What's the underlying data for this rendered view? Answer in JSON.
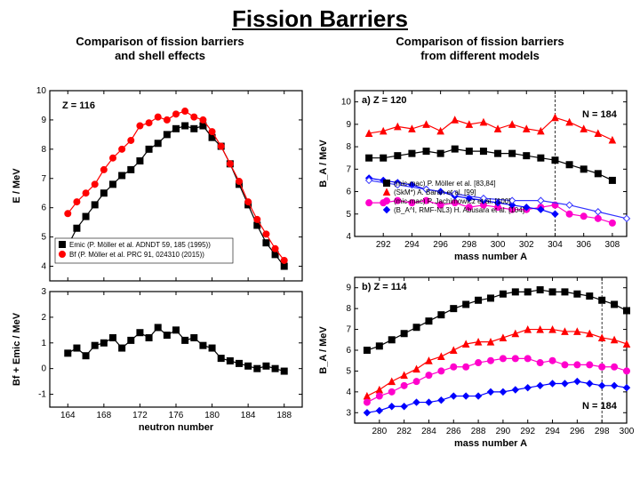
{
  "title": "Fission Barriers",
  "left_sub": "Comparison of fission barriers\nand shell effects",
  "right_sub": "Comparison of fission barriers\nfrom different models",
  "colors": {
    "axis": "#000000",
    "grid": "#cccccc",
    "black": "#000000",
    "red": "#ff0000",
    "magenta": "#ff00cc",
    "blue": "#0000ff",
    "openblue": "#3333ff"
  },
  "left": {
    "annot": "Z = 116",
    "xaxis_label": "neutron number",
    "x": [
      164,
      165,
      166,
      167,
      168,
      169,
      170,
      171,
      172,
      173,
      174,
      175,
      176,
      177,
      178,
      179,
      180,
      181,
      182,
      183,
      184,
      185,
      186,
      187,
      188
    ],
    "xlim": [
      162,
      190
    ],
    "xticks": [
      164,
      168,
      172,
      176,
      180,
      184,
      188
    ],
    "top": {
      "ylabel": "E / MeV",
      "ylim": [
        3.5,
        10
      ],
      "yticks": [
        4,
        5,
        6,
        7,
        8,
        9,
        10
      ],
      "black": [
        4.7,
        5.3,
        5.7,
        6.1,
        6.5,
        6.8,
        7.1,
        7.3,
        7.6,
        8.0,
        8.2,
        8.5,
        8.7,
        8.8,
        8.7,
        8.8,
        8.4,
        8.1,
        7.5,
        6.8,
        6.1,
        5.4,
        4.8,
        4.4,
        4.0
      ],
      "red": [
        5.8,
        6.2,
        6.5,
        6.8,
        7.3,
        7.7,
        8.0,
        8.3,
        8.8,
        8.9,
        9.1,
        9.0,
        9.2,
        9.3,
        9.1,
        9.0,
        8.6,
        8.1,
        7.5,
        6.9,
        6.2,
        5.6,
        5.1,
        4.6,
        4.2
      ],
      "legend": [
        {
          "marker": "sq",
          "color": "black",
          "label": "Emic (P. Möller et al. ADNDT 59, 185 (1995))"
        },
        {
          "marker": "ci",
          "color": "red",
          "label": "Bf (P. Möller et al. PRC 91, 024310 (2015))"
        }
      ]
    },
    "bottom": {
      "ylabel": "Bf + Emic / MeV",
      "ylim": [
        -1.5,
        3
      ],
      "yticks": [
        -1,
        0,
        1,
        2,
        3
      ],
      "black": [
        0.6,
        0.8,
        0.5,
        0.9,
        1.0,
        1.2,
        0.8,
        1.1,
        1.4,
        1.2,
        1.6,
        1.3,
        1.5,
        1.1,
        1.2,
        0.9,
        0.8,
        0.4,
        0.3,
        0.2,
        0.1,
        0.0,
        0.1,
        0.0,
        -0.1
      ]
    }
  },
  "rightTop": {
    "panel": "a) Z = 120",
    "annotN": "N = 184",
    "xaxis_label": "mass number A",
    "xlim": [
      290,
      309
    ],
    "xticks": [
      292,
      294,
      296,
      298,
      300,
      302,
      304,
      306,
      308
    ],
    "ylabel": "B_A / MeV",
    "ylim": [
      4,
      10.5
    ],
    "yticks": [
      4,
      5,
      6,
      7,
      8,
      9,
      10
    ],
    "x": [
      291,
      292,
      293,
      294,
      295,
      296,
      297,
      298,
      299,
      300,
      301,
      302,
      303,
      304,
      305,
      306,
      307,
      308
    ],
    "black": [
      7.5,
      7.5,
      7.6,
      7.7,
      7.8,
      7.7,
      7.9,
      7.8,
      7.8,
      7.7,
      7.7,
      7.6,
      7.5,
      7.4,
      7.2,
      7.0,
      6.8,
      6.5
    ],
    "red": [
      8.6,
      8.7,
      8.9,
      8.8,
      9.0,
      8.7,
      9.2,
      9.0,
      9.1,
      8.8,
      9.0,
      8.8,
      8.7,
      9.3,
      9.1,
      8.8,
      8.6,
      8.3
    ],
    "magenta": [
      5.5,
      5.5,
      5.6,
      5.5,
      5.6,
      5.4,
      5.5,
      5.3,
      5.4,
      5.3,
      5.2,
      5.2,
      5.3,
      5.4,
      5.0,
      4.9,
      4.8,
      4.6
    ],
    "blue": [
      6.6,
      6.5,
      6.4,
      6.3,
      6.1,
      6.0,
      5.8,
      5.7,
      5.6,
      5.5,
      5.4,
      5.3,
      5.2,
      5.0
    ],
    "openblue_x": [
      291,
      293,
      295,
      297,
      299,
      301,
      303,
      305,
      307,
      309
    ],
    "openblue": [
      6.5,
      6.3,
      6.1,
      5.9,
      5.7,
      5.6,
      5.6,
      5.4,
      5.1,
      4.8
    ],
    "vline_x": 304,
    "legend": [
      {
        "marker": "sq",
        "color": "black",
        "label": "(mic-mac) P. Möller et al. [83,84]"
      },
      {
        "marker": "tr",
        "color": "red",
        "label": "(SkM*) A. Baran et al. [99]"
      },
      {
        "marker": "ci",
        "color": "magenta",
        "label": "(mic-mac) P. Jachimowicz et al. [100]"
      },
      {
        "marker": "di",
        "color": "blue",
        "label": "(B_A^I, RMF-NL3) H. Abusara et al. [104]"
      }
    ]
  },
  "rightBottom": {
    "panel": "b) Z = 114",
    "annotN": "N = 184",
    "xaxis_label": "mass number A",
    "xlim": [
      278,
      300
    ],
    "xticks": [
      280,
      282,
      284,
      286,
      288,
      290,
      292,
      294,
      296,
      298,
      300
    ],
    "ylabel": "B_A / MeV",
    "ylim": [
      2.5,
      9.5
    ],
    "yticks": [
      3,
      4,
      5,
      6,
      7,
      8,
      9
    ],
    "x": [
      279,
      280,
      281,
      282,
      283,
      284,
      285,
      286,
      287,
      288,
      289,
      290,
      291,
      292,
      293,
      294,
      295,
      296,
      297,
      298,
      299,
      300
    ],
    "black": [
      6.0,
      6.2,
      6.5,
      6.8,
      7.1,
      7.4,
      7.7,
      8.0,
      8.2,
      8.4,
      8.5,
      8.7,
      8.8,
      8.8,
      8.9,
      8.8,
      8.8,
      8.7,
      8.6,
      8.4,
      8.2,
      7.9
    ],
    "red": [
      3.8,
      4.1,
      4.5,
      4.8,
      5.1,
      5.5,
      5.7,
      6.0,
      6.3,
      6.4,
      6.4,
      6.6,
      6.8,
      7.0,
      7.0,
      7.0,
      6.9,
      6.9,
      6.8,
      6.6,
      6.5,
      6.3
    ],
    "magenta": [
      3.5,
      3.8,
      4.0,
      4.3,
      4.5,
      4.8,
      5.0,
      5.2,
      5.2,
      5.4,
      5.5,
      5.6,
      5.6,
      5.6,
      5.4,
      5.5,
      5.3,
      5.3,
      5.3,
      5.2,
      5.2,
      5.0
    ],
    "blue": [
      3.0,
      3.1,
      3.3,
      3.3,
      3.5,
      3.5,
      3.6,
      3.8,
      3.8,
      3.8,
      4.0,
      4.0,
      4.1,
      4.2,
      4.3,
      4.4,
      4.4,
      4.5,
      4.4,
      4.3,
      4.3,
      4.2
    ],
    "vline_x": 298
  }
}
